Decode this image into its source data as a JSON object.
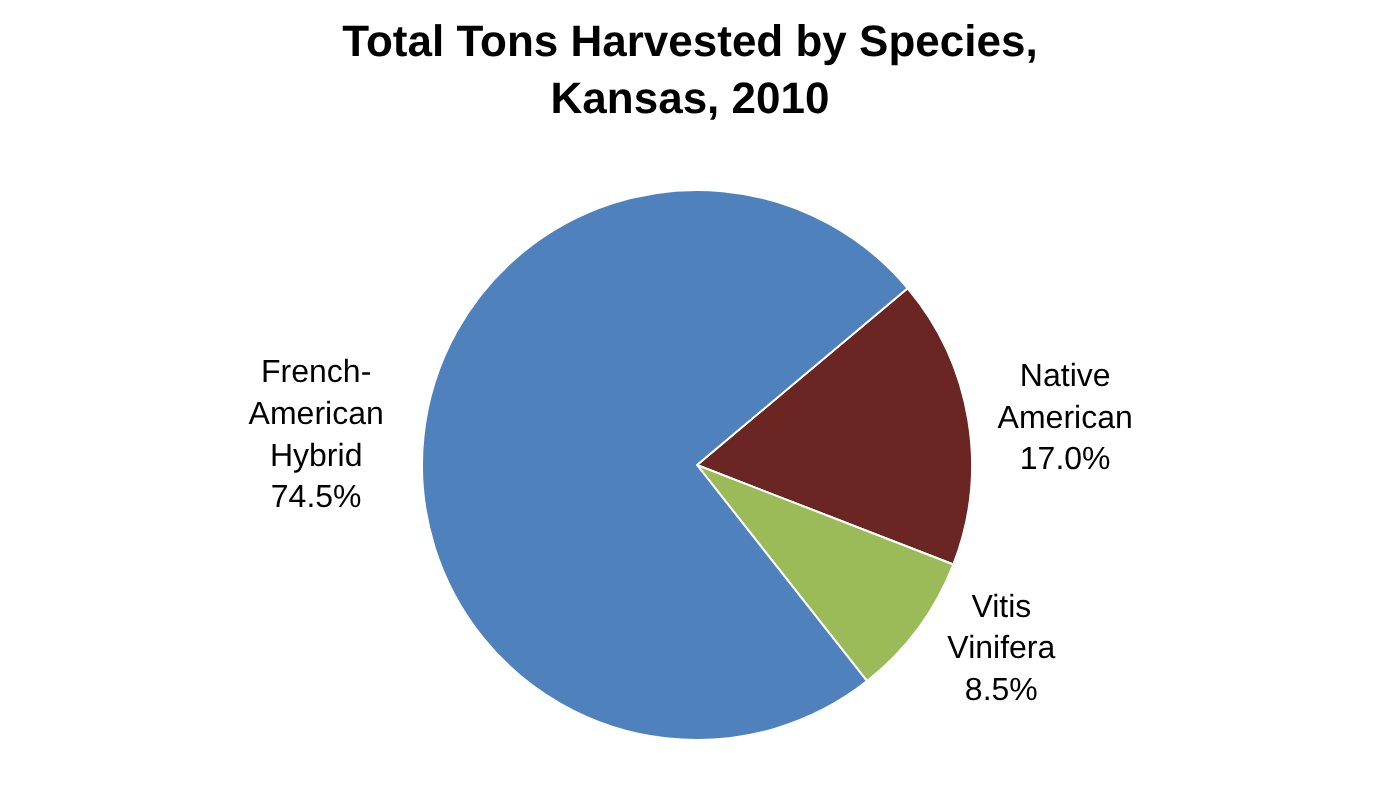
{
  "chart_data": {
    "type": "pie",
    "title": "Total Tons Harvested by Species,\nKansas, 2010",
    "categories": [
      "Native American",
      "Vitis Vinifera",
      "French-American Hybrid"
    ],
    "values": [
      17.0,
      8.5,
      74.5
    ],
    "colors": [
      "#6b2523",
      "#9bbb59",
      "#4f81bd"
    ],
    "value_labels": [
      "17.0%",
      "8.5%",
      "74.5%"
    ],
    "legend": false
  }
}
